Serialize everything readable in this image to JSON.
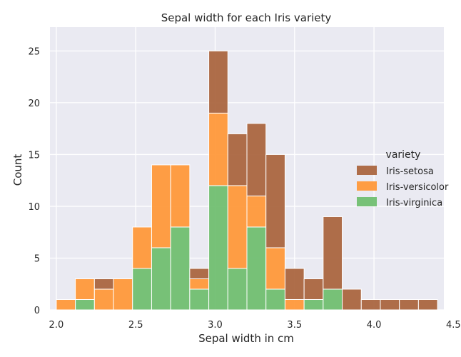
{
  "chart_data": {
    "type": "bar",
    "stacked": true,
    "title": "Sepal width for each Iris variety",
    "xlabel": "Sepal width in cm",
    "ylabel": "Count",
    "xlim": [
      1.96,
      4.44
    ],
    "ylim": [
      0,
      27.3
    ],
    "bin_width": 0.12,
    "bin_start": 2.0,
    "x_ticks": [
      2.0,
      2.5,
      3.0,
      3.5,
      4.0,
      4.5
    ],
    "x_tick_labels": [
      "2.0",
      "2.5",
      "3.0",
      "3.5",
      "4.0",
      "4.5"
    ],
    "y_ticks": [
      0,
      5,
      10,
      15,
      20,
      25
    ],
    "y_tick_labels": [
      "0",
      "5",
      "10",
      "15",
      "20",
      "25"
    ],
    "grid": true,
    "background": "#eaeaf2",
    "legend": {
      "title": "variety",
      "placement": "right"
    },
    "series": [
      {
        "name": "Iris-setosa",
        "color": "#a8623b",
        "values": [
          0,
          0,
          1,
          0,
          0,
          0,
          0,
          1,
          6,
          5,
          7,
          9,
          3,
          2,
          7,
          2,
          1,
          1,
          1,
          1
        ]
      },
      {
        "name": "Iris-versicolor",
        "color": "#ff9635",
        "values": [
          1,
          2,
          2,
          3,
          4,
          8,
          6,
          1,
          7,
          8,
          3,
          4,
          1,
          0,
          0,
          0,
          0,
          0,
          0,
          0
        ]
      },
      {
        "name": "Iris-virginica",
        "color": "#6cbd6c",
        "values": [
          0,
          1,
          0,
          0,
          4,
          6,
          8,
          2,
          12,
          4,
          8,
          2,
          0,
          1,
          2,
          0,
          0,
          0,
          0,
          0
        ]
      }
    ]
  }
}
